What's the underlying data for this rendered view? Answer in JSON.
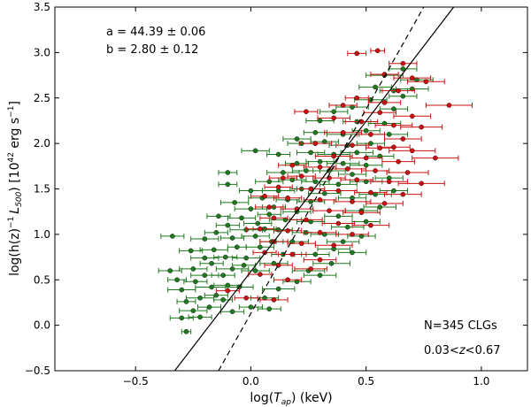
{
  "chart_data": {
    "type": "scatter",
    "title": "",
    "xlabel": "log(T_ap) (keV)",
    "xlabel_parts": {
      "pre": "log(",
      "var": "T",
      "sub": "ap",
      "post": ") (keV)"
    },
    "ylabel": "log(h(z)^-1 L_500) [10^42 erg s^-1]",
    "ylabel_parts": {
      "pre": "log(h(z)",
      "pre_sup": "−1",
      "var": "L",
      "var_sub": "500",
      "mid": ") [10",
      "exp": "42",
      "units": " erg s",
      "units_sup": "−1",
      "post": "]"
    },
    "xlim": [
      -0.85,
      1.2
    ],
    "ylim": [
      -0.5,
      3.5
    ],
    "x_ticks": [
      -0.5,
      0.0,
      0.5,
      1.0
    ],
    "x_tick_labels": [
      "−0.5",
      "0.0",
      "0.5",
      "1.0"
    ],
    "y_ticks": [
      -0.5,
      0.0,
      0.5,
      1.0,
      1.5,
      2.0,
      2.5,
      3.0,
      3.5
    ],
    "y_tick_labels": [
      "−0.5",
      "0.0",
      "0.5",
      "1.0",
      "1.5",
      "2.0",
      "2.5",
      "3.0",
      "3.5"
    ],
    "annotations": {
      "a_text": "a = 44.39 ± 0.06",
      "b_text": "b = 2.80 ± 0.12",
      "n_text": "N=345 CLGs",
      "z_range_parts": {
        "pre": "0.03<",
        "var": "z",
        "post": "<0.67"
      }
    },
    "fit_lines": [
      {
        "name": "best fit",
        "style": "solid",
        "color": "#000000",
        "x": [
          -0.33,
          0.88
        ],
        "y": [
          -0.5,
          3.5
        ]
      },
      {
        "name": "comparison",
        "style": "dashed",
        "color": "#000000",
        "x": [
          -0.14,
          0.75
        ],
        "y": [
          -0.5,
          3.5
        ]
      }
    ],
    "series": [
      {
        "name": "green",
        "color": "#1f7a1f",
        "points": [
          [
            -0.28,
            -0.07,
            0.02
          ],
          [
            -0.3,
            0.08,
            0.05
          ],
          [
            -0.22,
            0.09,
            0.05
          ],
          [
            -0.25,
            0.16,
            0.06
          ],
          [
            -0.18,
            0.2,
            0.05
          ],
          [
            -0.28,
            0.26,
            0.04
          ],
          [
            -0.22,
            0.3,
            0.06
          ],
          [
            -0.15,
            0.33,
            0.05
          ],
          [
            -0.3,
            0.39,
            0.06
          ],
          [
            -0.17,
            0.42,
            0.07
          ],
          [
            -0.24,
            0.48,
            0.05
          ],
          [
            -0.1,
            0.44,
            0.06
          ],
          [
            -0.05,
            0.42,
            0.06
          ],
          [
            -0.2,
            0.55,
            0.06
          ],
          [
            -0.12,
            0.55,
            0.05
          ],
          [
            -0.08,
            0.62,
            0.07
          ],
          [
            -0.25,
            0.62,
            0.06
          ],
          [
            -0.17,
            0.68,
            0.05
          ],
          [
            -0.03,
            0.66,
            0.05
          ],
          [
            0.02,
            0.6,
            0.06
          ],
          [
            -0.2,
            0.74,
            0.06
          ],
          [
            -0.11,
            0.75,
            0.05
          ],
          [
            -0.02,
            0.74,
            0.06
          ],
          [
            -0.26,
            0.82,
            0.05
          ],
          [
            -0.16,
            0.83,
            0.06
          ],
          [
            -0.06,
            0.86,
            0.04
          ],
          [
            0.04,
            0.86,
            0.06
          ],
          [
            -0.2,
            0.95,
            0.06
          ],
          [
            -0.08,
            0.96,
            0.05
          ],
          [
            0.02,
            0.98,
            0.06
          ],
          [
            0.09,
            0.92,
            0.05
          ],
          [
            -0.15,
            1.02,
            0.05
          ],
          [
            -0.02,
            1.05,
            0.07
          ],
          [
            0.06,
            1.06,
            0.05
          ],
          [
            -0.1,
            1.1,
            0.05
          ],
          [
            0.03,
            1.12,
            0.06
          ],
          [
            0.12,
            1.05,
            0.06
          ],
          [
            -0.04,
            1.18,
            0.06
          ],
          [
            0.08,
            1.22,
            0.05
          ],
          [
            -0.14,
            1.2,
            0.05
          ],
          [
            0.15,
            1.16,
            0.07
          ],
          [
            0.0,
            1.28,
            0.07
          ],
          [
            0.1,
            1.3,
            0.05
          ],
          [
            0.2,
            1.25,
            0.06
          ],
          [
            -0.07,
            1.35,
            0.06
          ],
          [
            0.05,
            1.4,
            0.06
          ],
          [
            0.16,
            1.38,
            0.05
          ],
          [
            0.26,
            1.36,
            0.06
          ],
          [
            0.0,
            1.48,
            0.05
          ],
          [
            0.12,
            1.48,
            0.07
          ],
          [
            0.22,
            1.5,
            0.05
          ],
          [
            0.32,
            1.45,
            0.07
          ],
          [
            -0.1,
            1.55,
            0.04
          ],
          [
            0.08,
            1.58,
            0.06
          ],
          [
            0.18,
            1.6,
            0.06
          ],
          [
            0.28,
            1.58,
            0.06
          ],
          [
            0.38,
            1.55,
            0.08
          ],
          [
            0.14,
            1.68,
            0.07
          ],
          [
            0.24,
            1.7,
            0.06
          ],
          [
            0.34,
            1.7,
            0.07
          ],
          [
            0.44,
            1.66,
            0.06
          ],
          [
            0.2,
            1.78,
            0.05
          ],
          [
            0.3,
            1.8,
            0.06
          ],
          [
            0.4,
            1.78,
            0.07
          ],
          [
            0.5,
            1.76,
            0.07
          ],
          [
            0.26,
            1.9,
            0.06
          ],
          [
            0.36,
            1.88,
            0.07
          ],
          [
            0.46,
            1.9,
            0.07
          ],
          [
            0.56,
            1.86,
            0.06
          ],
          [
            0.22,
            2.0,
            0.06
          ],
          [
            0.32,
            2.02,
            0.06
          ],
          [
            0.42,
            1.98,
            0.08
          ],
          [
            0.52,
            2.0,
            0.06
          ],
          [
            0.28,
            2.12,
            0.05
          ],
          [
            0.4,
            2.1,
            0.07
          ],
          [
            0.5,
            2.14,
            0.06
          ],
          [
            0.6,
            2.1,
            0.08
          ],
          [
            0.46,
            2.24,
            0.06
          ],
          [
            0.58,
            2.22,
            0.07
          ],
          [
            0.62,
            2.38,
            0.06
          ],
          [
            0.52,
            2.48,
            0.07
          ],
          [
            0.66,
            2.52,
            0.06
          ],
          [
            0.7,
            2.6,
            0.07
          ],
          [
            0.62,
            2.58,
            0.06
          ],
          [
            0.72,
            2.7,
            0.07
          ],
          [
            0.06,
            0.3,
            0.06
          ],
          [
            0.12,
            0.4,
            0.07
          ],
          [
            0.2,
            0.48,
            0.06
          ],
          [
            0.25,
            0.6,
            0.07
          ],
          [
            0.3,
            0.55,
            0.07
          ],
          [
            0.35,
            0.68,
            0.08
          ],
          [
            0.28,
            0.78,
            0.06
          ],
          [
            0.36,
            0.84,
            0.07
          ],
          [
            0.44,
            0.8,
            0.06
          ],
          [
            0.4,
            0.92,
            0.07
          ],
          [
            0.48,
            0.98,
            0.06
          ],
          [
            0.32,
            1.0,
            0.06
          ],
          [
            0.42,
            1.08,
            0.07
          ],
          [
            0.5,
            1.14,
            0.06
          ],
          [
            0.38,
            1.2,
            0.06
          ],
          [
            0.48,
            1.26,
            0.07
          ],
          [
            0.56,
            1.3,
            0.07
          ],
          [
            0.44,
            1.4,
            0.06
          ],
          [
            0.54,
            1.44,
            0.07
          ],
          [
            0.62,
            1.48,
            0.06
          ],
          [
            0.5,
            1.58,
            0.07
          ],
          [
            0.6,
            1.62,
            0.06
          ],
          [
            0.18,
            0.92,
            0.07
          ],
          [
            0.24,
            1.02,
            0.06
          ],
          [
            0.26,
            1.14,
            0.06
          ],
          [
            0.14,
            0.78,
            0.05
          ],
          [
            0.1,
            0.68,
            0.06
          ],
          [
            -0.35,
            0.6,
            0.05
          ],
          [
            -0.34,
            0.98,
            0.05
          ],
          [
            -0.32,
            0.5,
            0.04
          ],
          [
            -0.08,
            0.15,
            0.05
          ],
          [
            -0.12,
            0.28,
            0.04
          ],
          [
            0.0,
            0.2,
            0.05
          ],
          [
            0.08,
            0.18,
            0.05
          ],
          [
            -0.1,
            1.68,
            0.04
          ],
          [
            0.02,
            1.92,
            0.06
          ],
          [
            0.12,
            1.88,
            0.05
          ],
          [
            0.2,
            2.05,
            0.06
          ],
          [
            0.3,
            2.25,
            0.06
          ],
          [
            0.36,
            2.35,
            0.06
          ],
          [
            0.44,
            2.4,
            0.07
          ],
          [
            0.54,
            2.62,
            0.07
          ],
          [
            0.58,
            2.75,
            0.08
          ],
          [
            0.66,
            2.82,
            0.06
          ]
        ]
      },
      {
        "name": "red",
        "color": "#cc1111",
        "points": [
          [
            0.55,
            3.02,
            0.03
          ],
          [
            0.46,
            2.99,
            0.04
          ],
          [
            0.66,
            2.88,
            0.06
          ],
          [
            0.58,
            2.76,
            0.06
          ],
          [
            0.7,
            2.72,
            0.08
          ],
          [
            0.76,
            2.68,
            0.08
          ],
          [
            0.64,
            2.58,
            0.07
          ],
          [
            0.46,
            2.5,
            0.05
          ],
          [
            0.58,
            2.45,
            0.07
          ],
          [
            0.86,
            2.42,
            0.1
          ],
          [
            0.24,
            2.35,
            0.05
          ],
          [
            0.36,
            2.28,
            0.07
          ],
          [
            0.48,
            2.24,
            0.07
          ],
          [
            0.62,
            2.2,
            0.08
          ],
          [
            0.74,
            2.18,
            0.09
          ],
          [
            0.4,
            2.12,
            0.08
          ],
          [
            0.52,
            2.1,
            0.06
          ],
          [
            0.66,
            2.05,
            0.08
          ],
          [
            0.28,
            2.0,
            0.07
          ],
          [
            0.44,
            1.98,
            0.07
          ],
          [
            0.56,
            1.95,
            0.06
          ],
          [
            0.7,
            1.92,
            0.1
          ],
          [
            0.36,
            1.86,
            0.08
          ],
          [
            0.5,
            1.84,
            0.07
          ],
          [
            0.64,
            1.8,
            0.07
          ],
          [
            0.8,
            1.84,
            0.1
          ],
          [
            0.18,
            1.76,
            0.06
          ],
          [
            0.3,
            1.74,
            0.07
          ],
          [
            0.42,
            1.72,
            0.08
          ],
          [
            0.54,
            1.7,
            0.06
          ],
          [
            0.68,
            1.68,
            0.09
          ],
          [
            0.22,
            1.64,
            0.06
          ],
          [
            0.34,
            1.62,
            0.07
          ],
          [
            0.46,
            1.6,
            0.07
          ],
          [
            0.6,
            1.58,
            0.08
          ],
          [
            0.74,
            1.56,
            0.1
          ],
          [
            0.12,
            1.52,
            0.06
          ],
          [
            0.26,
            1.5,
            0.06
          ],
          [
            0.38,
            1.48,
            0.08
          ],
          [
            0.52,
            1.46,
            0.07
          ],
          [
            0.66,
            1.44,
            0.08
          ],
          [
            0.16,
            1.4,
            0.06
          ],
          [
            0.3,
            1.38,
            0.07
          ],
          [
            0.44,
            1.36,
            0.08
          ],
          [
            0.58,
            1.34,
            0.08
          ],
          [
            0.08,
            1.3,
            0.06
          ],
          [
            0.2,
            1.28,
            0.07
          ],
          [
            0.34,
            1.26,
            0.07
          ],
          [
            0.48,
            1.24,
            0.08
          ],
          [
            0.1,
            1.18,
            0.06
          ],
          [
            0.24,
            1.16,
            0.07
          ],
          [
            0.38,
            1.12,
            0.07
          ],
          [
            0.52,
            1.1,
            0.08
          ],
          [
            0.04,
            1.06,
            0.06
          ],
          [
            0.16,
            1.04,
            0.06
          ],
          [
            0.3,
            1.02,
            0.07
          ],
          [
            0.44,
            1.0,
            0.07
          ],
          [
            0.1,
            0.92,
            0.06
          ],
          [
            0.22,
            0.9,
            0.06
          ],
          [
            0.36,
            0.88,
            0.08
          ],
          [
            0.06,
            0.8,
            0.05
          ],
          [
            0.18,
            0.78,
            0.06
          ],
          [
            0.3,
            0.72,
            0.07
          ],
          [
            0.12,
            0.66,
            0.06
          ],
          [
            0.26,
            0.62,
            0.07
          ],
          [
            0.04,
            0.56,
            0.05
          ],
          [
            0.16,
            0.5,
            0.06
          ],
          [
            -0.1,
            0.38,
            0.05
          ],
          [
            -0.02,
            0.3,
            0.05
          ],
          [
            0.1,
            0.28,
            0.06
          ],
          [
            0.62,
            1.96,
            0.07
          ],
          [
            0.7,
            2.3,
            0.08
          ],
          [
            0.56,
            2.34,
            0.07
          ],
          [
            0.4,
            2.42,
            0.06
          ],
          [
            0.14,
            1.62,
            0.06
          ],
          [
            0.06,
            1.42,
            0.06
          ]
        ]
      }
    ]
  }
}
